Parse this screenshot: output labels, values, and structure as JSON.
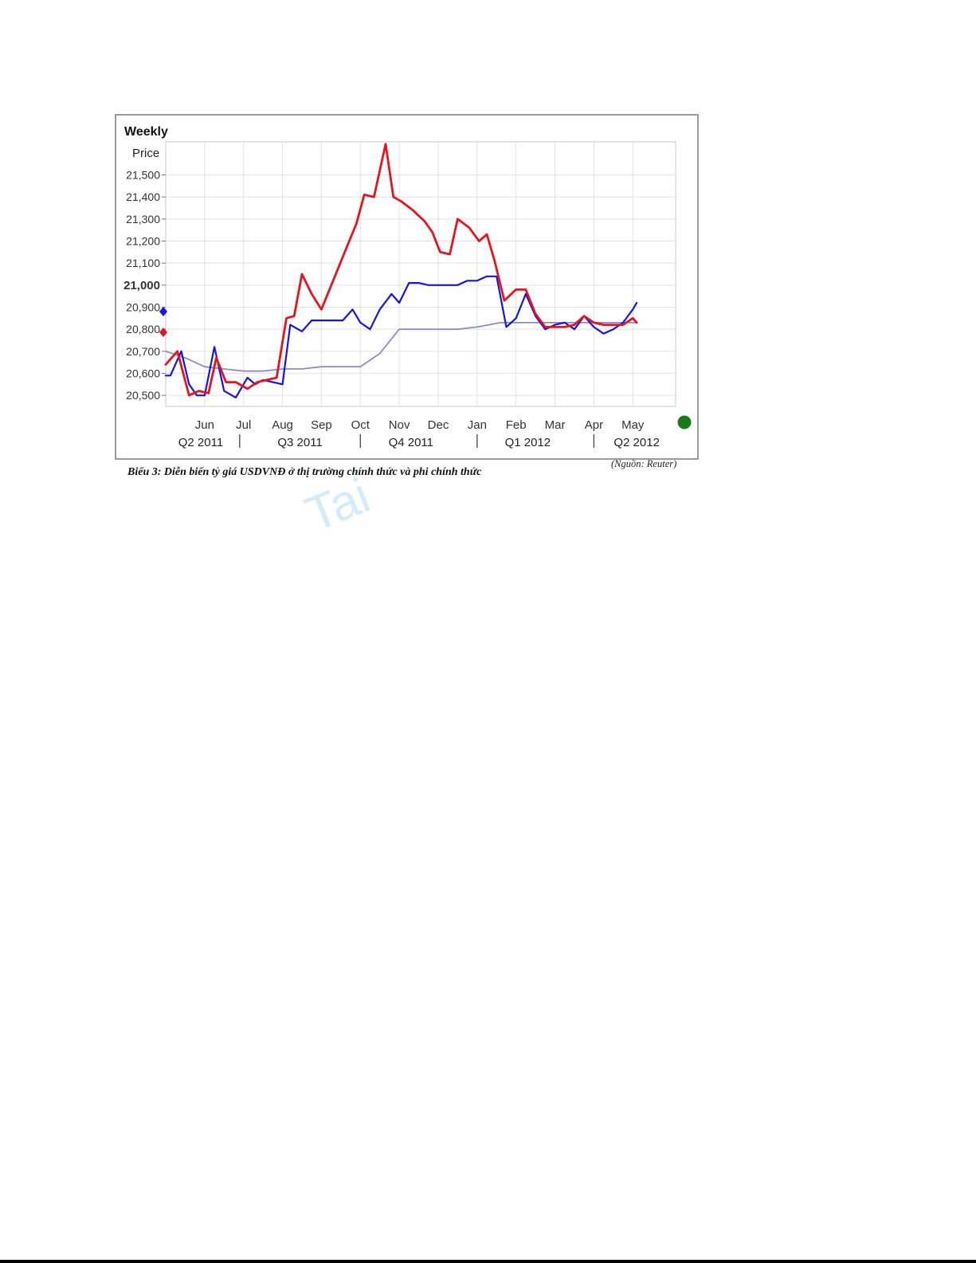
{
  "page": {
    "chart_title": "Weekly",
    "y_axis_title": "Price",
    "caption": "Biểu 3: Diễn biến tỷ giá USDVNĐ ở thị trường chính thức và phi chính  thức",
    "source": "(Nguồn: Reuter)",
    "watermark": "Tai",
    "colors": {
      "red_series": "#e8141c",
      "blue_series": "#1414e6",
      "average_series": "#8c8cc8",
      "status_dot": "#1a7a1a"
    },
    "icons": [
      "blue-price-marker-icon",
      "red-price-marker-icon",
      "green-status-dot-icon"
    ]
  },
  "chart_data": {
    "type": "line",
    "title": "Weekly",
    "ylabel": "Price",
    "xlabel": "",
    "ylim": [
      20450,
      21650
    ],
    "yticks": [
      20500,
      20600,
      20700,
      20800,
      20900,
      21000,
      21100,
      21200,
      21300,
      21400,
      21500
    ],
    "ytick_labels": [
      "20,500",
      "20,600",
      "20,700",
      "20,800",
      "20,900",
      "21,000",
      "21,100",
      "21,200",
      "21,300",
      "21,400",
      "21,500"
    ],
    "xlim": [
      0,
      13.1
    ],
    "x_unit": "months from 1 May 2011",
    "month_ticks": [
      {
        "label": "Jun",
        "x": 1
      },
      {
        "label": "Jul",
        "x": 2
      },
      {
        "label": "Aug",
        "x": 3
      },
      {
        "label": "Sep",
        "x": 4
      },
      {
        "label": "Oct",
        "x": 5
      },
      {
        "label": "Nov",
        "x": 6
      },
      {
        "label": "Dec",
        "x": 7
      },
      {
        "label": "Jan",
        "x": 8
      },
      {
        "label": "Feb",
        "x": 9
      },
      {
        "label": "Mar",
        "x": 10
      },
      {
        "label": "Apr",
        "x": 11
      },
      {
        "label": "May",
        "x": 12
      }
    ],
    "quarter_labels": [
      {
        "label": "Q2 2011",
        "x": 0.9
      },
      {
        "label": "Q3 2011",
        "x": 3.45
      },
      {
        "label": "Q4 2011",
        "x": 6.3
      },
      {
        "label": "Q1 2012",
        "x": 9.3
      },
      {
        "label": "Q2 2012",
        "x": 12.1
      }
    ],
    "quarter_separators": [
      1.9,
      5.0,
      8.0,
      11.0
    ],
    "grid": true,
    "series": [
      {
        "color": "#8c8cc8",
        "x": [
          0,
          0.5,
          1.0,
          1.5,
          2.0,
          2.5,
          3.0,
          3.5,
          4.0,
          4.5,
          5.0,
          5.5,
          6.0,
          6.5,
          7.0,
          7.5,
          8.0,
          8.3,
          8.6,
          9.0,
          9.5,
          10.0,
          10.5,
          11.0,
          11.5,
          12.0,
          12.1
        ],
        "y": [
          20700,
          20670,
          20630,
          20620,
          20610,
          20610,
          20620,
          20620,
          20630,
          20630,
          20630,
          20690,
          20800,
          20800,
          20800,
          20800,
          20810,
          20820,
          20830,
          20830,
          20830,
          20830,
          20830,
          20830,
          20830,
          20830,
          20830
        ]
      },
      {
        "color": "#1414e6",
        "x": [
          0,
          0.12,
          0.4,
          0.6,
          0.8,
          1.0,
          1.25,
          1.5,
          1.8,
          2.1,
          2.3,
          2.5,
          2.75,
          3.0,
          3.2,
          3.5,
          3.75,
          4.0,
          4.3,
          4.55,
          4.8,
          5.0,
          5.25,
          5.5,
          5.8,
          6.0,
          6.25,
          6.5,
          6.75,
          7.0,
          7.25,
          7.5,
          7.75,
          8.0,
          8.25,
          8.5,
          8.75,
          9.0,
          9.25,
          9.5,
          9.75,
          10.0,
          10.25,
          10.5,
          10.75,
          11.0,
          11.25,
          11.5,
          11.75,
          12.0,
          12.1
        ],
        "y": [
          20590,
          20590,
          20700,
          20550,
          20500,
          20500,
          20720,
          20520,
          20490,
          20580,
          20550,
          20570,
          20560,
          20550,
          20820,
          20790,
          20840,
          20840,
          20840,
          20840,
          20890,
          20830,
          20800,
          20890,
          20960,
          20920,
          21010,
          21010,
          21000,
          21000,
          21000,
          21000,
          21020,
          21020,
          21040,
          21040,
          20810,
          20850,
          20960,
          20860,
          20800,
          20820,
          20830,
          20800,
          20860,
          20810,
          20780,
          20800,
          20830,
          20890,
          20920
        ]
      },
      {
        "color": "#e8141c",
        "x": [
          0,
          0.3,
          0.6,
          0.85,
          1.1,
          1.3,
          1.55,
          1.8,
          2.1,
          2.35,
          2.6,
          2.85,
          3.1,
          3.3,
          3.5,
          3.75,
          4.0,
          4.3,
          4.6,
          4.9,
          5.1,
          5.35,
          5.65,
          5.85,
          6.05,
          6.35,
          6.65,
          6.85,
          7.05,
          7.3,
          7.5,
          7.8,
          8.05,
          8.25,
          8.45,
          8.7,
          9.0,
          9.25,
          9.5,
          9.75,
          10.0,
          10.25,
          10.5,
          10.75,
          11.0,
          11.25,
          11.5,
          11.75,
          12.0,
          12.1
        ],
        "y": [
          20640,
          20700,
          20500,
          20520,
          20510,
          20670,
          20560,
          20560,
          20530,
          20560,
          20570,
          20580,
          20850,
          20860,
          21050,
          20960,
          20890,
          21020,
          21150,
          21280,
          21410,
          21400,
          21640,
          21400,
          21380,
          21340,
          21290,
          21240,
          21150,
          21140,
          21300,
          21260,
          21200,
          21230,
          21110,
          20930,
          20980,
          20980,
          20870,
          20810,
          20810,
          20810,
          20820,
          20860,
          20830,
          20820,
          20820,
          20820,
          20850,
          20830
        ]
      }
    ]
  }
}
